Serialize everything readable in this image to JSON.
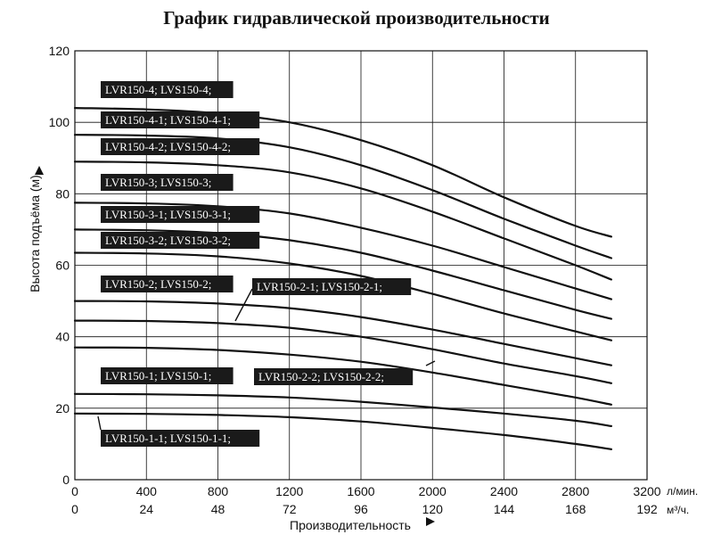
{
  "chart_data": {
    "type": "line",
    "title": "График гидравлической производительности",
    "xlabel": "Производительность",
    "ylabel": "Высота подъёма (м)",
    "x_unit_primary": "л/мин.",
    "x_unit_secondary": "м³/ч.",
    "xlim": [
      0,
      3200
    ],
    "ylim": [
      0,
      120
    ],
    "x_ticks_primary": [
      "0",
      "400",
      "800",
      "1200",
      "1600",
      "2000",
      "2400",
      "2800",
      "3200"
    ],
    "x_ticks_secondary": [
      "0",
      "24",
      "48",
      "72",
      "96",
      "120",
      "144",
      "168",
      "192"
    ],
    "y_ticks": [
      "0",
      "20",
      "40",
      "60",
      "80",
      "100",
      "120"
    ],
    "grid": true,
    "curve_x": [
      0,
      400,
      800,
      1200,
      1600,
      2000,
      2400,
      2800,
      3000
    ],
    "series": [
      {
        "name": "LVR150-4; LVS150-4;",
        "values": [
          104,
          103.6,
          102.5,
          100,
          95,
          88,
          79,
          71,
          68
        ]
      },
      {
        "name": "LVR150-4-1; LVS150-4-1;",
        "values": [
          96.5,
          96.3,
          95.5,
          93,
          88,
          81,
          73,
          65.5,
          62
        ]
      },
      {
        "name": "LVR150-4-2; LVS150-4-2;",
        "values": [
          89,
          88.8,
          88,
          86,
          81.5,
          75,
          67.5,
          60,
          56
        ]
      },
      {
        "name": "LVR150-3; LVS150-3;",
        "values": [
          77.5,
          77.3,
          76.5,
          74.5,
          70.5,
          65.5,
          59.5,
          53.5,
          50.5
        ]
      },
      {
        "name": "LVR150-3-1; LVS150-3-1;",
        "values": [
          70,
          69.8,
          69,
          67,
          63.5,
          58.5,
          53,
          47.5,
          45
        ]
      },
      {
        "name": "LVR150-3-2; LVS150-3-2;",
        "values": [
          63.5,
          63.3,
          62.5,
          60.5,
          57,
          52,
          46.5,
          41.5,
          39
        ]
      },
      {
        "name": "LVR150-2; LVS150-2;",
        "values": [
          50,
          49.9,
          49.3,
          48,
          45.5,
          42,
          38,
          34,
          32
        ]
      },
      {
        "name": "LVR150-2-1; LVS150-2-1;",
        "values": [
          44.5,
          44.4,
          43.8,
          42.5,
          40,
          36.5,
          32.5,
          29,
          27
        ]
      },
      {
        "name": "LVR150-2-2; LVS150-2-2;",
        "values": [
          37,
          36.9,
          36.3,
          35,
          33,
          30,
          26.5,
          23,
          21
        ]
      },
      {
        "name": "LVR150-1; LVS150-1;",
        "values": [
          24,
          23.9,
          23.6,
          23,
          21.8,
          20.2,
          18.5,
          16.5,
          15
        ]
      },
      {
        "name": "LVR150-1-1; LVS150-1-1;",
        "values": [
          18.5,
          18.4,
          18.1,
          17.5,
          16.3,
          14.5,
          12.5,
          10,
          8.5
        ]
      }
    ]
  }
}
